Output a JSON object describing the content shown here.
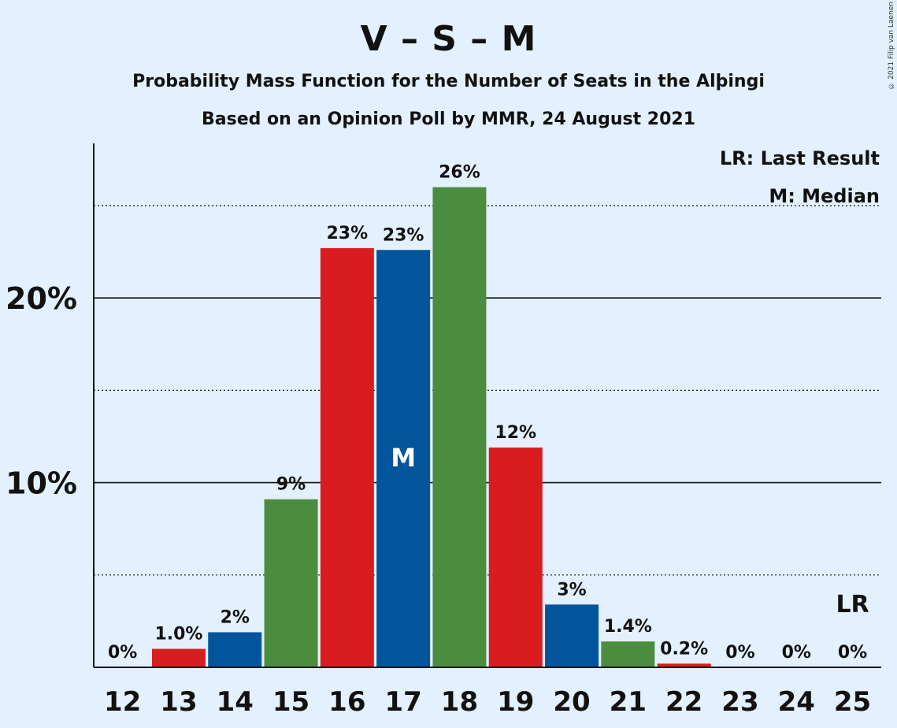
{
  "title": "V – S – M",
  "subtitle": "Probability Mass Function for the Number of Seats in the Alþingi",
  "subtitle2": "Based on an Opinion Poll by MMR, 24 August 2021",
  "copyright": "© 2021 Filip van Laenen",
  "legend": {
    "last_result": "LR: Last Result",
    "median": "M: Median"
  },
  "colors": {
    "red": "#d91c20",
    "blue": "#02559b",
    "green": "#4a8d3f",
    "background": "#e3f0fd"
  },
  "chart_data": {
    "type": "bar",
    "categories": [
      "12",
      "13",
      "14",
      "15",
      "16",
      "17",
      "18",
      "19",
      "20",
      "21",
      "22",
      "23",
      "24",
      "25"
    ],
    "values": [
      0,
      1.0,
      1.9,
      9.1,
      22.7,
      22.6,
      26.0,
      11.9,
      3.4,
      1.4,
      0.2,
      0,
      0,
      0
    ],
    "labels": [
      "0%",
      "1.0%",
      "2%",
      "9%",
      "23%",
      "23%",
      "26%",
      "12%",
      "3%",
      "1.4%",
      "0.2%",
      "0%",
      "0%",
      "0%"
    ],
    "bar_colors": [
      "red",
      "red",
      "blue",
      "green",
      "red",
      "blue",
      "green",
      "red",
      "blue",
      "green",
      "red",
      "red",
      "blue",
      "green"
    ],
    "yticks": [
      {
        "value": 10,
        "label": "10%"
      },
      {
        "value": 20,
        "label": "20%"
      }
    ],
    "minor_gridlines": [
      5,
      15,
      25
    ],
    "ylim": [
      0,
      28.3
    ],
    "median_category": "17",
    "median_marker": "M",
    "last_result_category": "25",
    "last_result_marker": "LR"
  }
}
